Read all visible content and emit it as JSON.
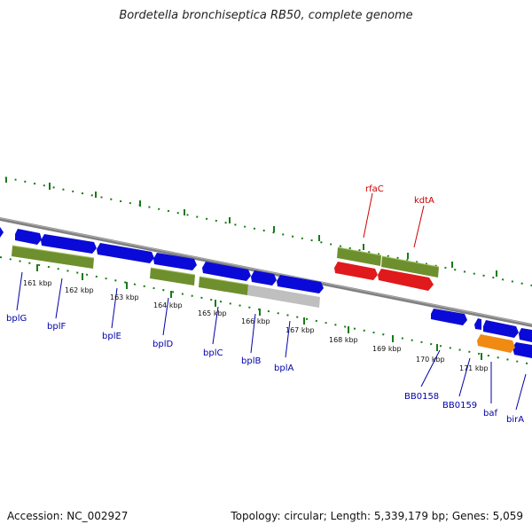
{
  "title": "Bordetella bronchiseptica RB50, complete genome",
  "footer": {
    "accession": "Accession: NC_002927",
    "summary": "Topology: circular; Length: 5,339,179 bp; Genes: 5,059"
  },
  "colors": {
    "background": "#ffffff",
    "forward_cds": "#0a0ad8",
    "gene_bar": "#6e8f2e",
    "rna_gene": "#e0191c",
    "pseudo": "#bfbfbf",
    "misc": "#f08a12",
    "backbone": "#808080",
    "ticks": "#1a7a1a",
    "red_label": "#cc0000",
    "blue_label": "#0000aa"
  },
  "axis": {
    "ticks": [
      "161 kbp",
      "162 kbp",
      "163 kbp",
      "164 kbp",
      "165 kbp",
      "166 kbp",
      "167 kbp",
      "168 kbp",
      "169 kbp",
      "170 kbp",
      "171 kbp"
    ]
  },
  "features": {
    "top": [
      "rfaC",
      "kdtA"
    ],
    "bottom": [
      "bplG",
      "bplF",
      "bplE",
      "bplD",
      "bplC",
      "bplB",
      "bplA",
      "BB0158",
      "BB0159",
      "baf",
      "birA"
    ]
  }
}
